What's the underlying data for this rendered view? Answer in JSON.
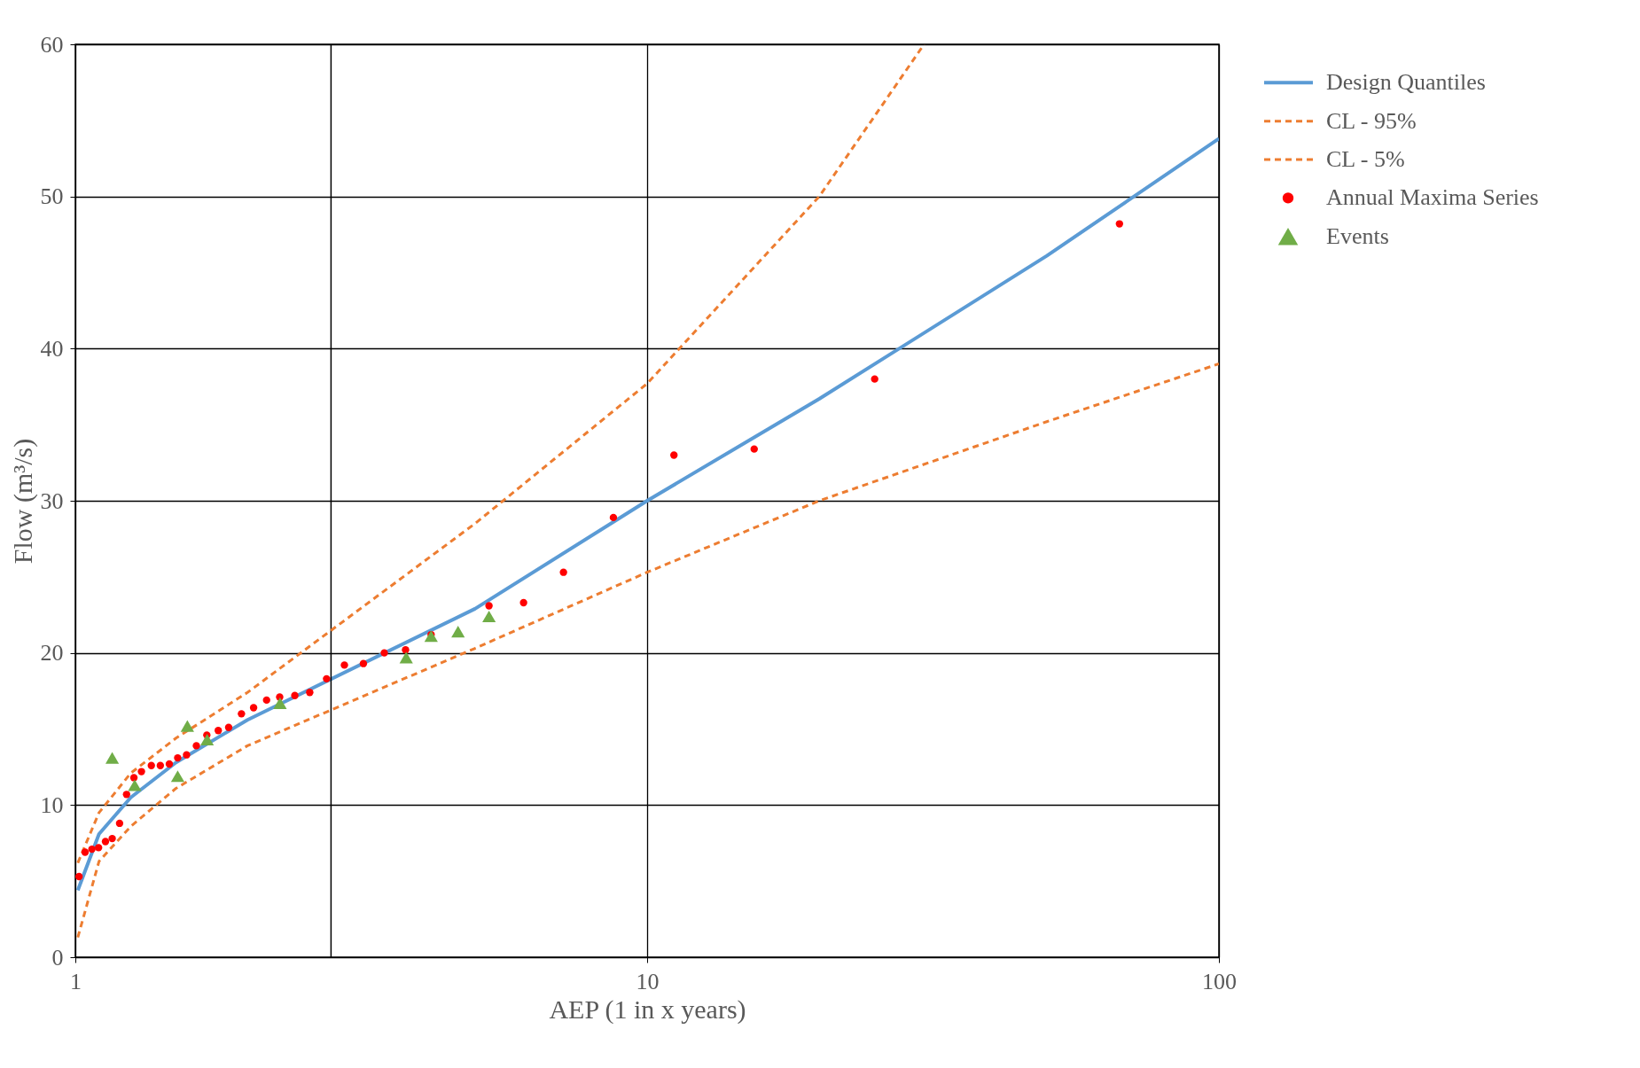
{
  "chart_data": {
    "type": "line",
    "xlabel": "AEP (1 in x years)",
    "ylabel": "Flow (m³/s)",
    "log": "x",
    "xlim": [
      1,
      100
    ],
    "xticks": [
      1,
      10,
      100
    ],
    "ylim": [
      0,
      60
    ],
    "yticks": [
      0,
      10,
      20,
      30,
      40,
      50,
      60
    ],
    "grid": true,
    "legend": "right",
    "ref_lines": [
      {
        "axis": "x",
        "value": 2.8,
        "color": "#000000"
      }
    ],
    "series": [
      {
        "name": "Design Quantiles",
        "line_style": "solid",
        "color": "#5b9bd5",
        "x": [
          1.01,
          1.1,
          1.25,
          1.5,
          2,
          5,
          10,
          20,
          50,
          100
        ],
        "values": [
          4.4,
          8.1,
          10.5,
          12.8,
          15.6,
          22.9,
          30,
          36.7,
          46.1,
          53.8
        ]
      },
      {
        "name": "CL - 95%",
        "line_style": "dashed",
        "color": "#ed7d31",
        "x": [
          1.01,
          1.1,
          1.25,
          1.5,
          2,
          5,
          10,
          20,
          30.5
        ],
        "values": [
          6.2,
          9.5,
          12.1,
          14.4,
          17.4,
          28.5,
          37.7,
          50,
          60
        ]
      },
      {
        "name": "CL - 5%",
        "line_style": "dashed",
        "color": "#ed7d31",
        "x": [
          1.01,
          1.1,
          1.25,
          1.5,
          2,
          5,
          10,
          20,
          50,
          100
        ],
        "values": [
          1.3,
          6.3,
          8.6,
          11.1,
          13.9,
          20.3,
          25.3,
          30,
          35.2,
          39
        ]
      },
      {
        "name": "Annual Maxima Series",
        "type": "scatter",
        "marker": "circle",
        "color": "#ff0000",
        "x": [
          1.015,
          1.04,
          1.069,
          1.098,
          1.129,
          1.16,
          1.195,
          1.229,
          1.266,
          1.305,
          1.358,
          1.408,
          1.46,
          1.51,
          1.565,
          1.628,
          1.698,
          1.778,
          1.854,
          1.952,
          2.05,
          2.16,
          2.277,
          2.42,
          2.57,
          2.75,
          2.955,
          3.19,
          3.47,
          3.78,
          4.19,
          5.29,
          6.08,
          7.14,
          8.73,
          11.14,
          15.39,
          25,
          67
        ],
        "values": [
          5.3,
          6.9,
          7.1,
          7.2,
          7.6,
          7.8,
          8.8,
          10.7,
          11.8,
          12.2,
          12.6,
          12.6,
          12.7,
          13.1,
          13.3,
          13.9,
          14.6,
          14.9,
          15.1,
          16,
          16.4,
          16.9,
          17.1,
          17.2,
          17.4,
          18.3,
          19.2,
          19.3,
          20,
          20.2,
          21.2,
          23.1,
          23.3,
          25.3,
          28.9,
          33,
          33.4,
          38,
          48.2
        ]
      },
      {
        "name": "Events",
        "type": "scatter",
        "marker": "triangle",
        "color": "#70ad47",
        "x": [
          1.16,
          1.27,
          1.51,
          1.57,
          1.7,
          2.28,
          3.79,
          4.19,
          4.67,
          5.29
        ],
        "values": [
          13.1,
          11.3,
          11.9,
          15.2,
          14.3,
          16.7,
          19.7,
          21.1,
          21.4,
          22.4
        ]
      }
    ]
  }
}
